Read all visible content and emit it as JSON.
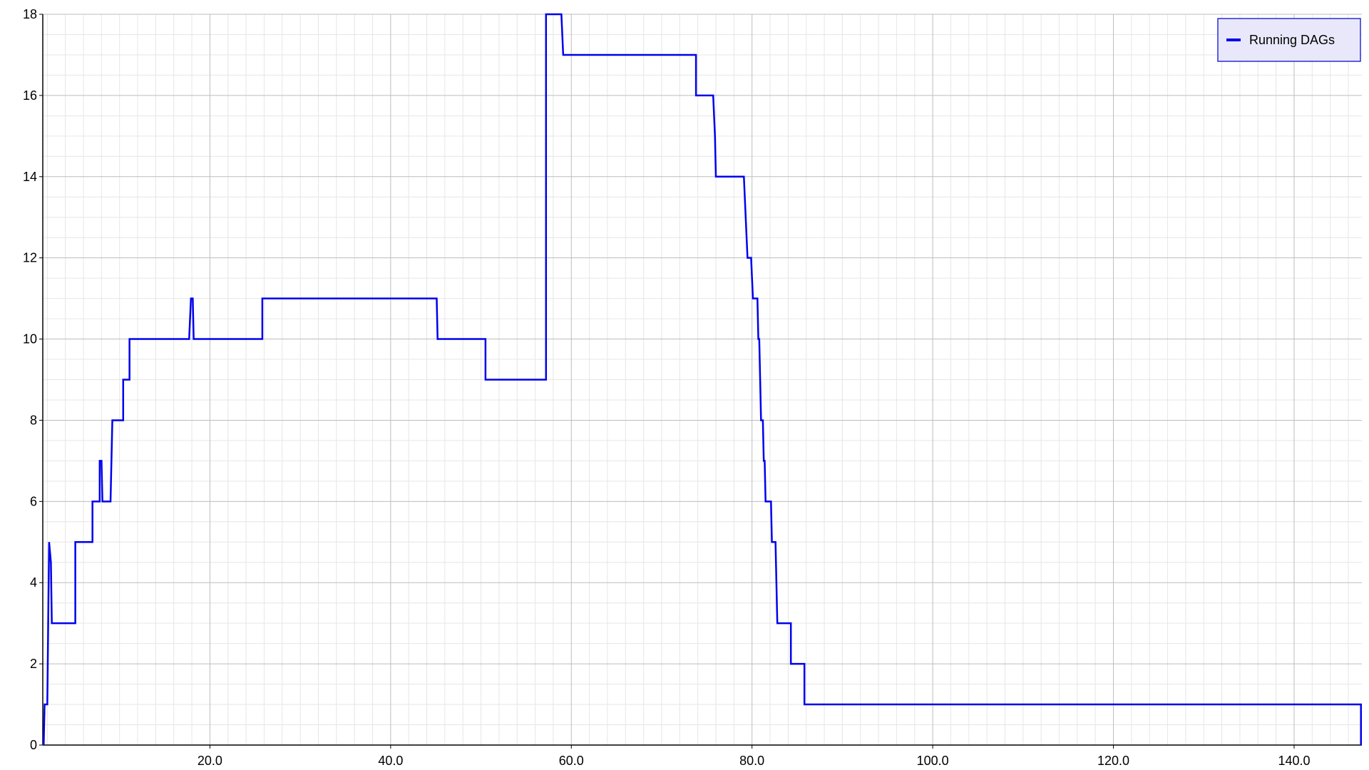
{
  "chart_data": {
    "type": "line",
    "title": "",
    "xlabel": "",
    "ylabel": "",
    "xlim": [
      1.5,
      147.5
    ],
    "ylim": [
      0,
      18
    ],
    "x_ticks": [
      {
        "value": 20,
        "label": "20.0"
      },
      {
        "value": 40,
        "label": "40.0"
      },
      {
        "value": 60,
        "label": "60.0"
      },
      {
        "value": 80,
        "label": "80.0"
      },
      {
        "value": 100,
        "label": "100.0"
      },
      {
        "value": 120,
        "label": "120.0"
      },
      {
        "value": 140,
        "label": "140.0"
      }
    ],
    "y_ticks": [
      {
        "value": 0,
        "label": "0"
      },
      {
        "value": 2,
        "label": "2"
      },
      {
        "value": 4,
        "label": "4"
      },
      {
        "value": 6,
        "label": "6"
      },
      {
        "value": 8,
        "label": "8"
      },
      {
        "value": 10,
        "label": "10"
      },
      {
        "value": 12,
        "label": "12"
      },
      {
        "value": 14,
        "label": "14"
      },
      {
        "value": 16,
        "label": "16"
      },
      {
        "value": 18,
        "label": "18"
      }
    ],
    "grid": true,
    "minor_grid": true,
    "legend_position": "top-right",
    "step": true,
    "series": [
      {
        "name": "Running DAGs",
        "color": "#0000ee",
        "points": [
          [
            1.6,
            0
          ],
          [
            1.7,
            1
          ],
          [
            2.0,
            1
          ],
          [
            2.1,
            3
          ],
          [
            2.2,
            5
          ],
          [
            2.4,
            4.5
          ],
          [
            2.5,
            3
          ],
          [
            5.1,
            3
          ],
          [
            5.1,
            5
          ],
          [
            7.0,
            5
          ],
          [
            7.0,
            6
          ],
          [
            7.8,
            6
          ],
          [
            7.8,
            7
          ],
          [
            8.0,
            7
          ],
          [
            8.1,
            6
          ],
          [
            9.0,
            6
          ],
          [
            9.1,
            7
          ],
          [
            9.2,
            8
          ],
          [
            10.4,
            8
          ],
          [
            10.4,
            9
          ],
          [
            11.1,
            9
          ],
          [
            11.1,
            10
          ],
          [
            17.7,
            10
          ],
          [
            17.8,
            10.5
          ],
          [
            17.9,
            11
          ],
          [
            18.1,
            11
          ],
          [
            18.2,
            10
          ],
          [
            25.8,
            10
          ],
          [
            25.8,
            11
          ],
          [
            45.1,
            11
          ],
          [
            45.2,
            10
          ],
          [
            50.5,
            10
          ],
          [
            50.5,
            9
          ],
          [
            57.2,
            9
          ],
          [
            57.2,
            18
          ],
          [
            58.9,
            18
          ],
          [
            59.0,
            17.5
          ],
          [
            59.1,
            17
          ],
          [
            73.8,
            17
          ],
          [
            73.8,
            16
          ],
          [
            75.7,
            16
          ],
          [
            75.8,
            15.5
          ],
          [
            75.9,
            15
          ],
          [
            76.0,
            14
          ],
          [
            79.1,
            14
          ],
          [
            79.2,
            13.5
          ],
          [
            79.3,
            13
          ],
          [
            79.4,
            12.5
          ],
          [
            79.5,
            12
          ],
          [
            79.9,
            12
          ],
          [
            80.0,
            11.5
          ],
          [
            80.1,
            11
          ],
          [
            80.6,
            11
          ],
          [
            80.7,
            10
          ],
          [
            80.8,
            10
          ],
          [
            80.9,
            9
          ],
          [
            81.0,
            8
          ],
          [
            81.2,
            8
          ],
          [
            81.3,
            7
          ],
          [
            81.4,
            7
          ],
          [
            81.5,
            6
          ],
          [
            82.1,
            6
          ],
          [
            82.2,
            5
          ],
          [
            82.6,
            5
          ],
          [
            82.7,
            4
          ],
          [
            82.8,
            3
          ],
          [
            84.3,
            3
          ],
          [
            84.3,
            2
          ],
          [
            85.8,
            2
          ],
          [
            85.8,
            1
          ],
          [
            147.4,
            1
          ],
          [
            147.4,
            0
          ]
        ]
      }
    ]
  }
}
